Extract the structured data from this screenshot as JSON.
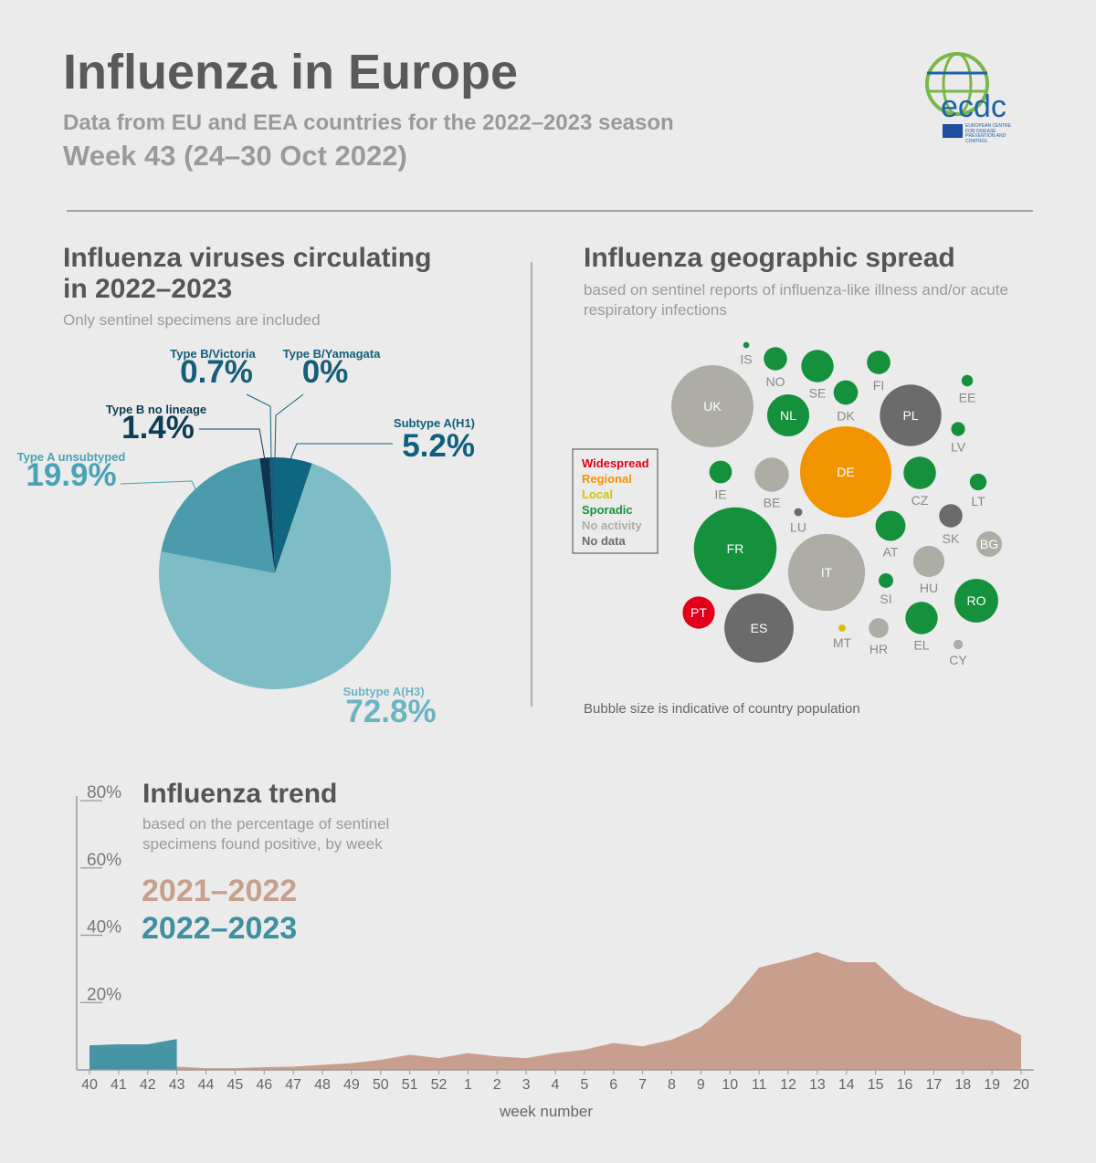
{
  "header": {
    "title": "Influenza in Europe",
    "subtitle": "Data from EU and EEA countries for the 2022–2023 season",
    "week": "Week 43 (24–30 Oct 2022)",
    "logo_name": "ecdc",
    "logo_caption": "EUROPEAN CENTRE FOR DISEASE PREVENTION AND CONTROL"
  },
  "chart_data": [
    {
      "type": "pie",
      "title": "Influenza viruses circulating in 2022–2023",
      "subtitle": "Only sentinel specimens are included",
      "categories": [
        "Subtype A(H1)",
        "Subtype A(H3)",
        "Type A unsubtyped",
        "Type B no lineage",
        "Type B/Victoria",
        "Type B/Yamagata"
      ],
      "values": [
        5.2,
        72.8,
        19.9,
        1.4,
        0.7,
        0
      ],
      "value_labels": [
        "5.2%",
        "72.8%",
        "19.9%",
        "1.4%",
        "0.7%",
        "0%"
      ],
      "colors": [
        "#0f6681",
        "#7fbdc6",
        "#4a9cad",
        "#0d3550",
        "#155e7a",
        "#155e7a"
      ]
    },
    {
      "type": "bubble",
      "title": "Influenza geographic spread",
      "subtitle": "based on sentinel reports of influenza-like illness and/or acute respiratory infections",
      "note": "Bubble size is indicative of country population",
      "series": [
        {
          "name": "Widespread",
          "color": "#e2001a",
          "categories": [
            "PT"
          ],
          "values": [
            10.3
          ]
        },
        {
          "name": "Regional",
          "color": "#f29400",
          "categories": [
            "DE"
          ],
          "values": [
            83
          ]
        },
        {
          "name": "Local",
          "color": "#d6c300",
          "categories": [
            "MT"
          ],
          "values": [
            0.5
          ]
        },
        {
          "name": "Sporadic",
          "color": "#15913d",
          "categories": [
            "IS",
            "NO",
            "SE",
            "FI",
            "NL",
            "DK",
            "EE",
            "LV",
            "IE",
            "CZ",
            "LT",
            "FR",
            "AT",
            "SI",
            "RO",
            "EL"
          ],
          "values": [
            0.37,
            5.4,
            10.4,
            5.5,
            17.6,
            5.9,
            1.3,
            1.9,
            5.1,
            10.5,
            2.8,
            68,
            9,
            2.1,
            19,
            10.4
          ]
        },
        {
          "name": "No activity",
          "color": "#adada6",
          "categories": [
            "UK",
            "BE",
            "IT",
            "HU",
            "BG",
            "HR",
            "CY"
          ],
          "values": [
            67,
            11.6,
            59,
            9.7,
            6.5,
            3.9,
            0.9
          ]
        },
        {
          "name": "No data",
          "color": "#6b6b6b",
          "categories": [
            "PL",
            "LU",
            "SK",
            "ES"
          ],
          "values": [
            37.7,
            0.65,
            5.4,
            47.6
          ]
        }
      ]
    },
    {
      "type": "area",
      "title": "Influenza trend",
      "subtitle": "based on the percentage of sentinel specimens found positive, by week",
      "x_label": "week number",
      "categories": [
        "40",
        "41",
        "42",
        "43",
        "44",
        "45",
        "46",
        "47",
        "48",
        "49",
        "50",
        "51",
        "52",
        "1",
        "2",
        "3",
        "4",
        "5",
        "6",
        "7",
        "8",
        "9",
        "10",
        "11",
        "12",
        "13",
        "14",
        "15",
        "16",
        "17",
        "18",
        "19",
        "20"
      ],
      "ylim": [
        0,
        80
      ],
      "yticks": [
        {
          "value": 20,
          "label": "20%"
        },
        {
          "value": 40,
          "label": "40%"
        },
        {
          "value": 60,
          "label": "60%"
        },
        {
          "value": 80,
          "label": "80%"
        }
      ],
      "series": [
        {
          "name": "2021–2022",
          "color": "#c89f8c",
          "values": [
            1.5,
            1.5,
            1.5,
            1,
            0.5,
            0.5,
            0.8,
            1,
            1.5,
            2,
            3,
            4.5,
            3.5,
            5,
            4,
            3.5,
            5,
            6,
            8,
            7,
            9,
            12.7,
            20,
            30.4,
            32.5,
            35,
            32,
            32,
            24,
            19.5,
            16,
            14.5,
            10.3
          ]
        },
        {
          "name": "2022–2023",
          "color": "#3e8fa0",
          "values": [
            7.3,
            7.6,
            7.6,
            9.2,
            null,
            null,
            null,
            null,
            null,
            null,
            null,
            null,
            null,
            null,
            null,
            null,
            null,
            null,
            null,
            null,
            null,
            null,
            null,
            null,
            null,
            null,
            null,
            null,
            null,
            null,
            null,
            null,
            null
          ]
        }
      ]
    }
  ]
}
